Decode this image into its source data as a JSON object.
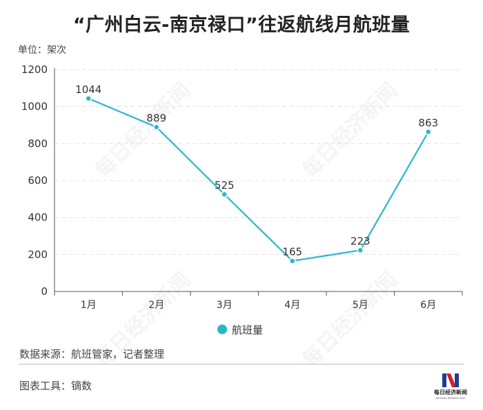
{
  "header": {
    "title": "“广州白云-南京禄口”往返航线月航班量",
    "unit": "单位：架次"
  },
  "footer": {
    "source": "数据来源：航班管家，记者整理",
    "tool": "图表工具：镝数"
  },
  "watermark": "每日经济新闻",
  "logo": {
    "mark": "N",
    "name": "每日经济新闻",
    "tagline": "NATIONAL BUSINESS DAILY"
  },
  "colors": {
    "line": "#2ab7ca",
    "grid": "#e3e3e3",
    "axis": "#555555",
    "logo_blue": "#1c3f94",
    "logo_red": "#d7202b"
  },
  "chart_data": {
    "type": "line",
    "categories": [
      "1月",
      "2月",
      "3月",
      "4月",
      "5月",
      "6月"
    ],
    "series": [
      {
        "name": "航班量",
        "values": [
          1044,
          889,
          525,
          165,
          223,
          863
        ]
      }
    ],
    "yticks": [
      0,
      200,
      400,
      600,
      800,
      1000,
      1200
    ],
    "ylim": [
      0,
      1200
    ],
    "grid": true,
    "legend": "bottom-center",
    "data_labels": true
  }
}
